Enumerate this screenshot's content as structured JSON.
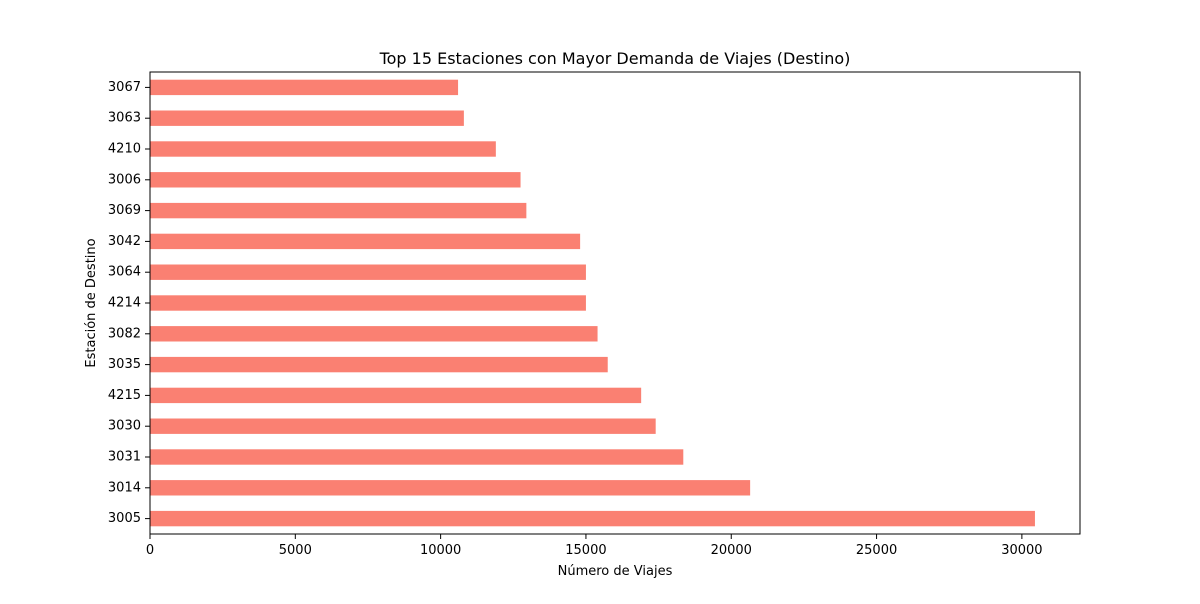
{
  "chart_data": {
    "type": "bar",
    "orientation": "horizontal",
    "title": "Top 15 Estaciones con Mayor Demanda de Viajes (Destino)",
    "xlabel": "Número de Viajes",
    "ylabel": "Estación de Destino",
    "categories": [
      "3005",
      "3014",
      "3031",
      "3030",
      "4215",
      "3035",
      "3082",
      "4214",
      "3064",
      "3042",
      "3069",
      "3006",
      "4210",
      "3063",
      "3067"
    ],
    "values": [
      30450,
      20650,
      18350,
      17400,
      16900,
      15750,
      15400,
      15000,
      15000,
      14800,
      12950,
      12750,
      11900,
      10800,
      10600
    ],
    "xlim": [
      0,
      32000
    ],
    "xticks": [
      0,
      5000,
      10000,
      15000,
      20000,
      25000,
      30000
    ],
    "grid": false,
    "legend": "none",
    "colors": {
      "bar": "#fa8072",
      "axis": "#000000"
    }
  }
}
